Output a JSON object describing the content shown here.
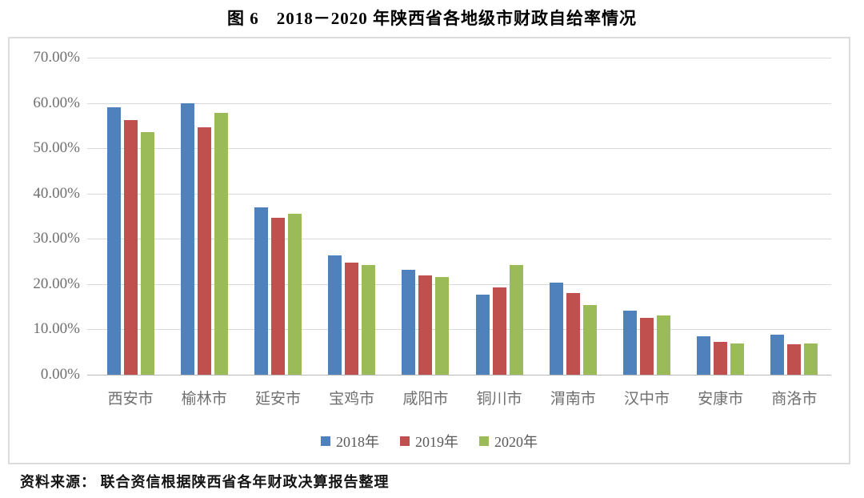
{
  "figure": {
    "title": "图 6　2018－2020 年陕西省各地级市财政自给率情况",
    "source_note": "资料来源： 联合资信根据陕西省各年财政决算报告整理"
  },
  "chart_data": {
    "type": "bar",
    "title": "图 6　2018－2020 年陕西省各地级市财政自给率情况",
    "categories": [
      "西安市",
      "榆林市",
      "延安市",
      "宝鸡市",
      "咸阳市",
      "铜川市",
      "渭南市",
      "汉中市",
      "安康市",
      "商洛市"
    ],
    "series": [
      {
        "name": "2018年",
        "color": "#4f81bd",
        "values": [
          59.1,
          60.0,
          37.0,
          26.3,
          23.1,
          17.7,
          20.3,
          14.2,
          8.5,
          8.8
        ]
      },
      {
        "name": "2019年",
        "color": "#c0504d",
        "values": [
          56.2,
          54.6,
          34.7,
          24.7,
          22.0,
          19.2,
          18.0,
          12.5,
          7.3,
          6.7
        ]
      },
      {
        "name": "2020年",
        "color": "#9bbb59",
        "values": [
          53.6,
          57.8,
          35.5,
          24.2,
          21.6,
          24.2,
          15.4,
          13.1,
          6.9,
          6.9
        ]
      }
    ],
    "xlabel": "",
    "ylabel": "",
    "ylim": [
      0,
      70
    ],
    "yticks": [
      "70.00%",
      "60.00%",
      "50.00%",
      "40.00%",
      "30.00%",
      "20.00%",
      "10.00%",
      "0.00%"
    ],
    "value_unit": "percent",
    "grid": true,
    "legend_position": "bottom"
  },
  "style": {
    "gridline_color": "#d9d9d9",
    "axisline_color": "#b9b9b9",
    "frame_border_color": "#dcdcdc",
    "axis_text_color": "#6f6f6f",
    "legend_text_color": "#595959"
  }
}
